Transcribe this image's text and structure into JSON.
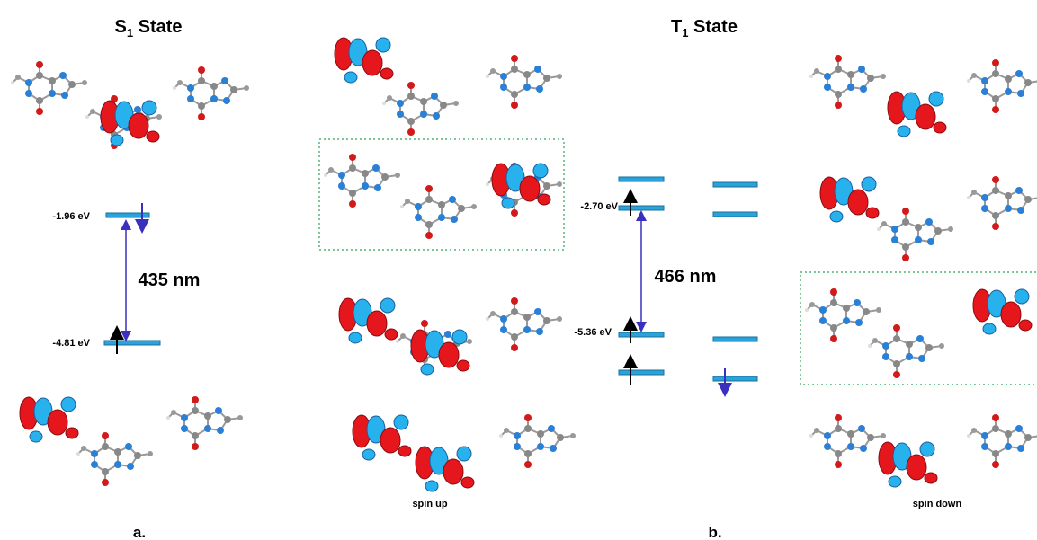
{
  "panel_a": {
    "title": {
      "letter": "S",
      "subscript": "1",
      "suffix": "State"
    },
    "levels": [
      {
        "label": "-1.96 eV"
      },
      {
        "label": "-4.81 eV"
      }
    ],
    "transition": "435 nm",
    "caption": "a."
  },
  "panel_b": {
    "title": {
      "letter": "T",
      "subscript": "1",
      "suffix": "State"
    },
    "levels": [
      {
        "label": "-2.70 eV"
      },
      {
        "label": "-5.36 eV"
      }
    ],
    "transition": "466 nm",
    "spin_up": "spin up",
    "spin_down": "spin down",
    "caption": "b."
  }
}
